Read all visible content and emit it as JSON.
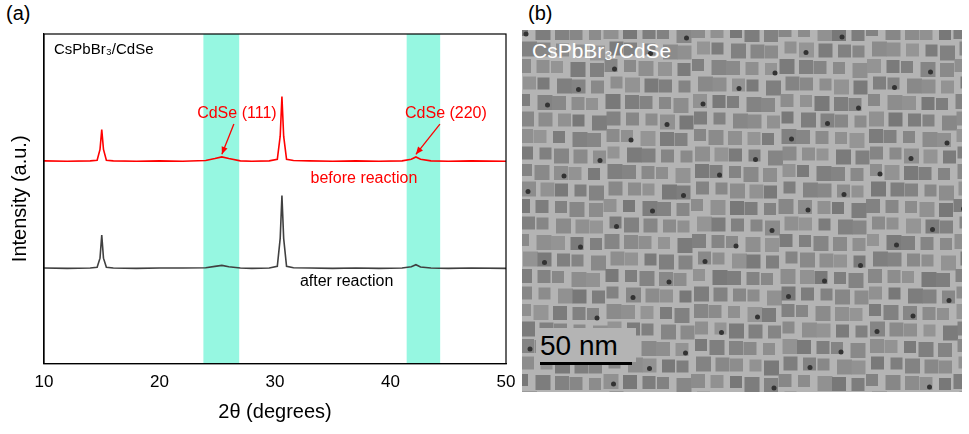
{
  "chart_data": {
    "type": "line",
    "title": "CsPbBr₃/CdSe",
    "x_label": "2θ (degrees)",
    "y_label": "Intensity (a.u.)",
    "x": [
      10,
      12,
      14,
      14.6,
      14.85,
      15.0,
      15.15,
      15.4,
      16,
      18,
      20,
      22,
      24,
      24.8,
      25.4,
      26.0,
      27,
      28,
      29.5,
      30.2,
      30.45,
      30.6,
      30.75,
      31.0,
      31.6,
      33,
      35,
      37,
      39,
      41,
      41.8,
      42.2,
      42.6,
      43.5,
      45,
      47,
      50
    ],
    "series": [
      {
        "name": "before reaction",
        "color": "#ff0000",
        "values": [
          6.15,
          6.14,
          6.15,
          6.17,
          6.5,
          7.1,
          6.5,
          6.17,
          6.15,
          6.14,
          6.15,
          6.14,
          6.16,
          6.22,
          6.27,
          6.22,
          6.15,
          6.14,
          6.15,
          6.2,
          6.9,
          8.1,
          6.9,
          6.2,
          6.16,
          6.15,
          6.14,
          6.15,
          6.14,
          6.15,
          6.2,
          6.27,
          6.2,
          6.15,
          6.14,
          6.15,
          6.14
        ]
      },
      {
        "name": "after reaction",
        "color": "#404040",
        "values": [
          2.9,
          2.89,
          2.9,
          2.92,
          3.2,
          3.9,
          3.2,
          2.92,
          2.9,
          2.89,
          2.9,
          2.9,
          2.91,
          2.95,
          2.98,
          2.94,
          2.9,
          2.89,
          2.9,
          2.95,
          3.8,
          5.1,
          3.8,
          2.95,
          2.91,
          2.9,
          2.89,
          2.9,
          2.89,
          2.9,
          2.94,
          3.0,
          2.93,
          2.9,
          2.89,
          2.9,
          2.89
        ]
      }
    ],
    "xlim": [
      10,
      50
    ],
    "xticks": [
      10,
      20,
      30,
      40,
      50
    ],
    "ylim": [
      0,
      10
    ],
    "tick_labels": "x",
    "grid": false,
    "shaded_ranges": [
      [
        23.8,
        26.9
      ],
      [
        41.4,
        44.3
      ]
    ],
    "annotations": [
      {
        "text": "CdSe (111)",
        "x": 26.7,
        "y": 7.6,
        "arrow_to": [
          25.4,
          6.35
        ],
        "color": "#ff0000"
      },
      {
        "text": "CdSe (220)",
        "x": 44.8,
        "y": 7.6,
        "arrow_to": [
          42.2,
          6.35
        ],
        "color": "#ff0000"
      },
      {
        "text": "before reaction",
        "x": 37.7,
        "y": 5.6,
        "color": "#ff0000"
      },
      {
        "text": "after reaction",
        "x": 36.2,
        "y": 2.5,
        "color": "#000000"
      }
    ]
  },
  "panel_labels": [
    "(a)",
    "(b)"
  ],
  "image": {
    "title": "CsPbBr₃/CdSe",
    "scale_bar": "50 nm"
  }
}
